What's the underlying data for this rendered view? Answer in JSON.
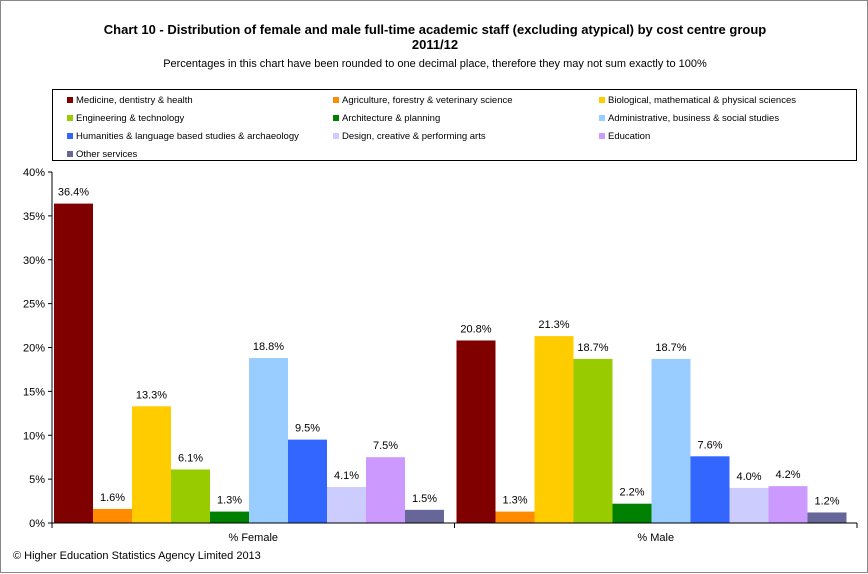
{
  "chart_data": {
    "type": "bar",
    "title_line1": "Chart 10 - Distribution  of female and male full-time academic staff (excluding atypical) by cost centre group",
    "title_line2": "2011/12",
    "subtitle": "Percentages in this chart have been rounded to one decimal place, therefore they may not sum exactly to 100%",
    "categories": [
      "% Female",
      "% Male"
    ],
    "y_ticks": [
      "0%",
      "5%",
      "10%",
      "15%",
      "20%",
      "25%",
      "30%",
      "35%",
      "40%"
    ],
    "ylim": [
      0,
      40
    ],
    "legend_position": "top",
    "series": [
      {
        "name": "Medicine, dentistry & health",
        "color": "#800000",
        "values": [
          36.4,
          20.8
        ],
        "labels": [
          "36.4%",
          "20.8%"
        ]
      },
      {
        "name": "Agriculture, forestry & veterinary science",
        "color": "#FF8C00",
        "values": [
          1.6,
          1.3
        ],
        "labels": [
          "1.6%",
          "1.3%"
        ]
      },
      {
        "name": "Biological, mathematical & physical sciences",
        "color": "#FFCC00",
        "values": [
          13.3,
          21.3
        ],
        "labels": [
          "13.3%",
          "21.3%"
        ]
      },
      {
        "name": "Engineering & technology",
        "color": "#99CC00",
        "values": [
          6.1,
          18.7
        ],
        "labels": [
          "6.1%",
          "18.7%"
        ]
      },
      {
        "name": "Architecture & planning",
        "color": "#008000",
        "values": [
          1.3,
          2.2
        ],
        "labels": [
          "1.3%",
          "2.2%"
        ]
      },
      {
        "name": "Administrative, business & social studies",
        "color": "#99CCFF",
        "values": [
          18.8,
          18.7
        ],
        "labels": [
          "18.8%",
          "18.7%"
        ]
      },
      {
        "name": "Humanities & language based studies & archaeology",
        "color": "#3366FF",
        "values": [
          9.5,
          7.6
        ],
        "labels": [
          "9.5%",
          "7.6%"
        ]
      },
      {
        "name": "Design, creative & performing arts",
        "color": "#CCCCFF",
        "values": [
          4.1,
          4.0
        ],
        "labels": [
          "4.1%",
          "4.0%"
        ]
      },
      {
        "name": "Education",
        "color": "#CC99FF",
        "values": [
          7.5,
          4.2
        ],
        "labels": [
          "7.5%",
          "4.2%"
        ]
      },
      {
        "name": "Other services",
        "color": "#666699",
        "values": [
          1.5,
          1.2
        ],
        "labels": [
          "1.5%",
          "1.2%"
        ]
      }
    ]
  },
  "footer": {
    "copyright": "© Higher Education Statistics Agency Limited 2013"
  }
}
